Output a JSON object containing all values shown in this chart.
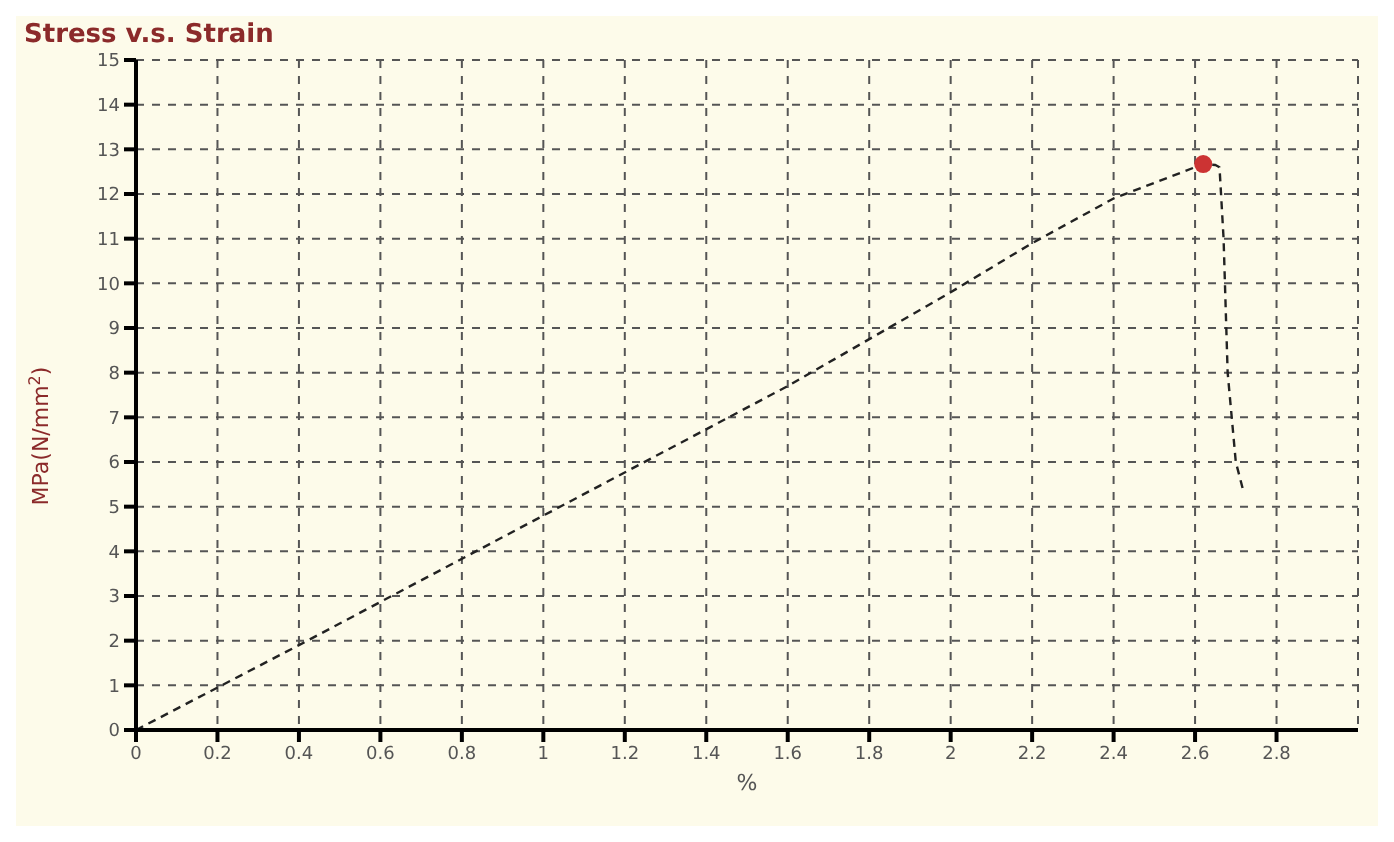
{
  "chart_data": {
    "type": "line",
    "title": "Stress v.s. Strain",
    "xlabel": "%",
    "ylabel": "MPa(N/mm$^{2}$)",
    "xlim": [
      0,
      3
    ],
    "xticks": [
      0,
      0.2,
      0.4,
      0.6,
      0.8,
      1,
      1.2,
      1.4,
      1.6,
      1.8,
      2,
      2.2,
      2.4,
      2.6,
      2.8
    ],
    "ylim": [
      0,
      15
    ],
    "yticks": [
      0,
      1,
      2,
      3,
      4,
      5,
      6,
      7,
      8,
      9,
      10,
      11,
      12,
      13,
      14,
      15
    ],
    "grid": true,
    "line_style": "dashed",
    "series": [
      {
        "color": "#222222",
        "x": [
          0,
          0.4,
          1,
          1.6,
          2,
          2.2,
          2.4,
          2.62,
          2.65,
          2.66,
          2.67,
          2.68,
          2.7,
          2.72
        ],
        "values": [
          0,
          1.9,
          4.8,
          7.7,
          9.8,
          10.9,
          11.9,
          12.67,
          12.65,
          12.6,
          11,
          8,
          6,
          5.3
        ]
      },
      {
        "type": "scatter",
        "color": "#cc3333",
        "x": [
          2.62
        ],
        "values": [
          12.67
        ]
      }
    ]
  }
}
